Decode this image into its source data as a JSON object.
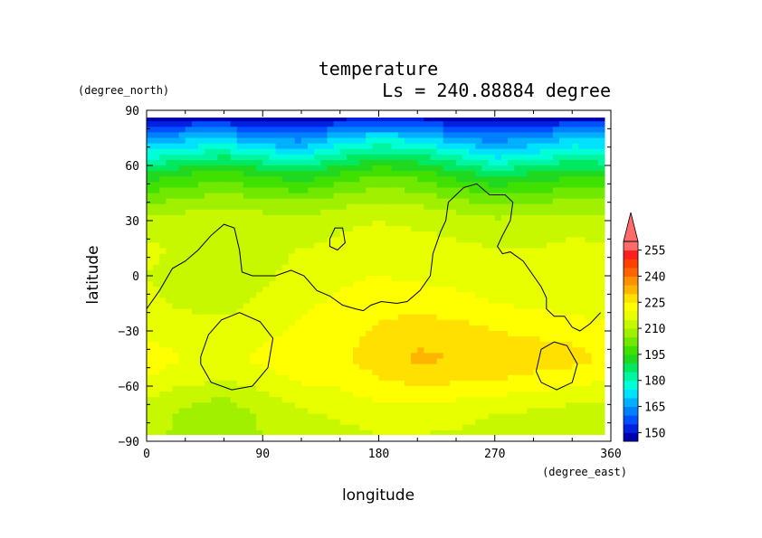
{
  "chart_data": {
    "type": "heatmap",
    "title": "temperature",
    "subtitle": "Ls = 240.88884 degree",
    "xlabel": "longitude",
    "ylabel": "latitude",
    "x_unit": "(degree_east)",
    "y_unit": "(degree_north)",
    "xlim": [
      0,
      360
    ],
    "ylim": [
      -90,
      90
    ],
    "x_ticks": [
      "0",
      "90",
      "180",
      "270",
      "360"
    ],
    "y_ticks": [
      "90",
      "60",
      "30",
      "0",
      "−30",
      "−60",
      "−90"
    ],
    "x_tick_values": [
      0,
      90,
      180,
      270,
      360
    ],
    "y_tick_values": [
      90,
      60,
      30,
      0,
      -30,
      -60,
      -90
    ],
    "data_extent": {
      "lon": [
        0,
        355
      ],
      "lat": [
        -87,
        87
      ]
    },
    "colorbar": {
      "labels": [
        "255",
        "240",
        "225",
        "210",
        "195",
        "180",
        "165",
        "150"
      ],
      "label_values": [
        255,
        240,
        225,
        210,
        195,
        180,
        165,
        150
      ],
      "levels": [
        145,
        150,
        155,
        160,
        165,
        170,
        175,
        180,
        185,
        190,
        195,
        200,
        205,
        210,
        215,
        220,
        225,
        230,
        235,
        240,
        245,
        250,
        255,
        260
      ],
      "colors": [
        "#0000b0",
        "#0022e0",
        "#0050ff",
        "#0080ff",
        "#00b0ff",
        "#00e0ff",
        "#00ffd8",
        "#00f5a0",
        "#00e860",
        "#20d820",
        "#40e000",
        "#70e800",
        "#a0f000",
        "#c8f800",
        "#e8ff00",
        "#ffff00",
        "#ffe000",
        "#ffb400",
        "#ff9000",
        "#ff6400",
        "#ff4000",
        "#ff1e1e",
        "#ff6a6a"
      ],
      "extend": "max"
    },
    "temperature_rows": [
      {
        "lat": 87,
        "values": [
          147,
          147,
          147,
          147,
          147,
          147,
          147,
          147,
          147,
          147,
          147,
          147,
          147
        ]
      },
      {
        "lat": 75,
        "values": [
          165,
          168,
          170,
          163,
          163,
          170,
          175,
          172,
          166,
          162,
          165,
          170,
          168
        ]
      },
      {
        "lat": 65,
        "values": [
          178,
          182,
          185,
          180,
          176,
          184,
          188,
          186,
          180,
          174,
          177,
          182,
          180
        ]
      },
      {
        "lat": 55,
        "values": [
          192,
          195,
          198,
          194,
          191,
          196,
          200,
          198,
          193,
          189,
          191,
          194,
          193
        ]
      },
      {
        "lat": 42,
        "values": [
          203,
          205,
          207,
          205,
          204,
          207,
          209,
          208,
          205,
          202,
          203,
          205,
          204
        ]
      },
      {
        "lat": 30,
        "values": [
          212,
          213,
          214,
          213,
          212,
          214,
          215,
          214,
          213,
          211,
          212,
          213,
          212
        ]
      },
      {
        "lat": 15,
        "values": [
          216,
          214,
          212,
          213,
          215,
          216,
          217,
          217,
          216,
          215,
          215,
          216,
          216
        ]
      },
      {
        "lat": 0,
        "values": [
          215,
          213,
          211,
          214,
          217,
          219,
          220,
          219,
          218,
          217,
          216,
          216,
          215
        ]
      },
      {
        "lat": -15,
        "values": [
          216,
          214,
          213,
          216,
          219,
          221,
          223,
          223,
          222,
          220,
          219,
          218,
          217
        ]
      },
      {
        "lat": -30,
        "values": [
          219,
          218,
          217,
          219,
          221,
          223,
          226,
          228,
          227,
          225,
          224,
          223,
          221
        ]
      },
      {
        "lat": -45,
        "values": [
          222,
          220,
          219,
          221,
          222,
          224,
          228,
          231,
          230,
          229,
          228,
          227,
          224
        ]
      },
      {
        "lat": -55,
        "values": [
          220,
          218,
          216,
          219,
          221,
          222,
          225,
          228,
          227,
          226,
          224,
          223,
          221
        ]
      },
      {
        "lat": -65,
        "values": [
          216,
          212,
          210,
          214,
          218,
          219,
          221,
          222,
          221,
          220,
          219,
          217,
          216
        ]
      },
      {
        "lat": -75,
        "values": [
          213,
          209,
          207,
          211,
          214,
          216,
          218,
          218,
          217,
          215,
          214,
          213,
          213
        ]
      },
      {
        "lat": -87,
        "values": [
          211,
          209,
          208,
          210,
          212,
          213,
          215,
          215,
          214,
          213,
          212,
          211,
          211
        ]
      }
    ],
    "row_lons": [
      0,
      30,
      60,
      90,
      120,
      150,
      180,
      210,
      240,
      270,
      300,
      330,
      360
    ],
    "contours": [
      [
        [
          0,
          -18
        ],
        [
          10,
          -8
        ],
        [
          20,
          4
        ],
        [
          30,
          8
        ],
        [
          40,
          14
        ],
        [
          50,
          22
        ],
        [
          60,
          28
        ],
        [
          68,
          26
        ],
        [
          72,
          14
        ],
        [
          74,
          2
        ],
        [
          82,
          0
        ],
        [
          100,
          0
        ],
        [
          112,
          3
        ],
        [
          122,
          0
        ],
        [
          132,
          -8
        ],
        [
          142,
          -11
        ],
        [
          152,
          -16
        ],
        [
          162,
          -18
        ],
        [
          168,
          -19
        ],
        [
          174,
          -16
        ],
        [
          182,
          -14
        ],
        [
          194,
          -15
        ],
        [
          202,
          -14
        ],
        [
          212,
          -8
        ],
        [
          220,
          0
        ],
        [
          222,
          12
        ],
        [
          228,
          24
        ],
        [
          232,
          30
        ],
        [
          234,
          40
        ],
        [
          246,
          48
        ],
        [
          256,
          50
        ],
        [
          266,
          44
        ],
        [
          278,
          44
        ],
        [
          284,
          40
        ],
        [
          282,
          30
        ],
        [
          276,
          22
        ],
        [
          272,
          16
        ],
        [
          276,
          12
        ],
        [
          282,
          13
        ],
        [
          292,
          8
        ],
        [
          298,
          2
        ],
        [
          306,
          -6
        ],
        [
          310,
          -12
        ],
        [
          310,
          -18
        ],
        [
          316,
          -22
        ],
        [
          324,
          -22
        ],
        [
          330,
          -28
        ],
        [
          336,
          -30
        ],
        [
          344,
          -26
        ],
        [
          352,
          -20
        ]
      ],
      [
        [
          142,
          20
        ],
        [
          146,
          26
        ],
        [
          152,
          26
        ],
        [
          154,
          18
        ],
        [
          148,
          14
        ],
        [
          142,
          16
        ],
        [
          142,
          20
        ]
      ],
      [
        [
          42,
          -44
        ],
        [
          48,
          -32
        ],
        [
          58,
          -24
        ],
        [
          72,
          -20
        ],
        [
          88,
          -25
        ],
        [
          98,
          -34
        ],
        [
          94,
          -50
        ],
        [
          82,
          -60
        ],
        [
          66,
          -62
        ],
        [
          50,
          -58
        ],
        [
          42,
          -48
        ],
        [
          42,
          -44
        ]
      ],
      [
        [
          302,
          -52
        ],
        [
          306,
          -40
        ],
        [
          316,
          -36
        ],
        [
          326,
          -38
        ],
        [
          334,
          -48
        ],
        [
          330,
          -58
        ],
        [
          318,
          -62
        ],
        [
          306,
          -58
        ],
        [
          302,
          -52
        ]
      ]
    ]
  }
}
